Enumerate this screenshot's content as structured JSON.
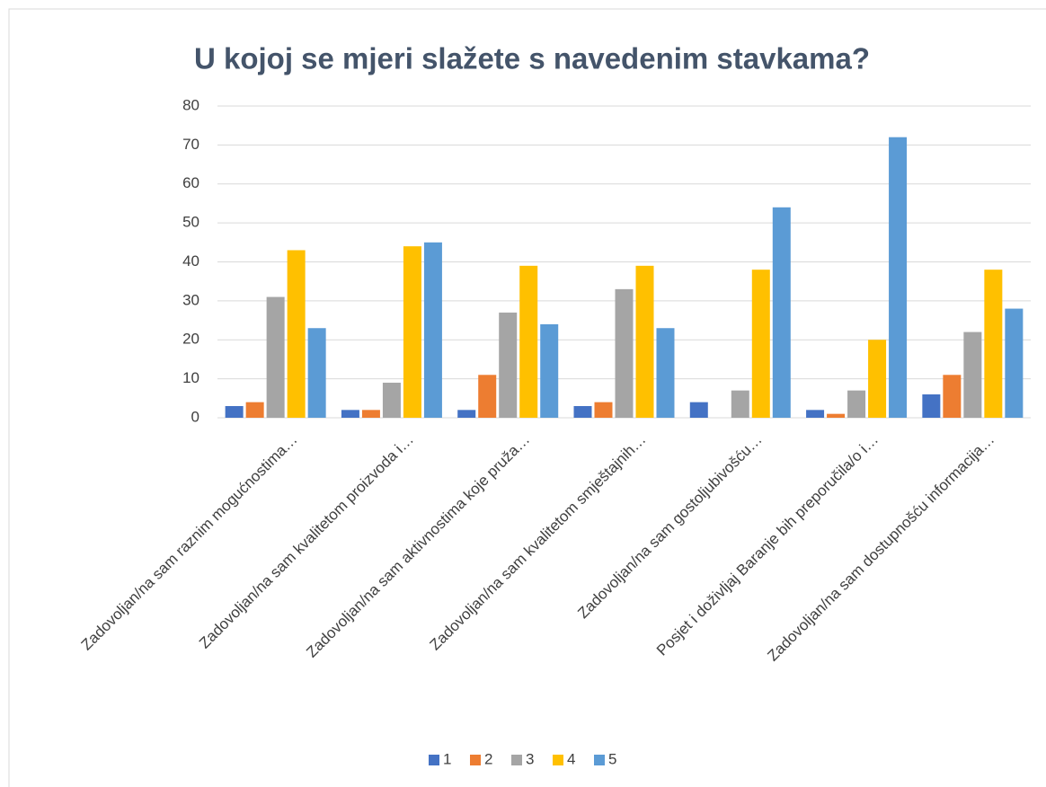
{
  "chart_data": {
    "type": "bar",
    "title": "U kojoj se mjeri slažete s navedenim stavkama?",
    "categories": [
      "Zadovoljan/na sam raznim mogućnostima…",
      "Zadovoljan/na sam kvalitetom proizvoda i…",
      "Zadovoljan/na sam aktivnostima koje pruža…",
      "Zadovoljan/na sam kvalitetom smještajnih…",
      "Zadovoljan/na sam gostoljubivošću…",
      "Posjet i doživljaj Baranje bih preporučila/o i…",
      "Zadovoljan/na sam dostupnošću informacija…"
    ],
    "series": [
      {
        "name": "1",
        "color": "#4472c4",
        "values": [
          3,
          2,
          2,
          3,
          4,
          2,
          6
        ]
      },
      {
        "name": "2",
        "color": "#ed7d31",
        "values": [
          4,
          2,
          11,
          4,
          0,
          1,
          11
        ]
      },
      {
        "name": "3",
        "color": "#a5a5a5",
        "values": [
          31,
          9,
          27,
          33,
          7,
          7,
          22
        ]
      },
      {
        "name": "4",
        "color": "#ffc000",
        "values": [
          43,
          44,
          39,
          39,
          38,
          20,
          38
        ]
      },
      {
        "name": "5",
        "color": "#5b9bd5",
        "values": [
          23,
          45,
          24,
          23,
          54,
          72,
          28
        ]
      }
    ],
    "ylim": [
      0,
      80
    ],
    "yticks": [
      0,
      10,
      20,
      30,
      40,
      50,
      60,
      70,
      80
    ],
    "grid": true,
    "legend": "bottom"
  }
}
